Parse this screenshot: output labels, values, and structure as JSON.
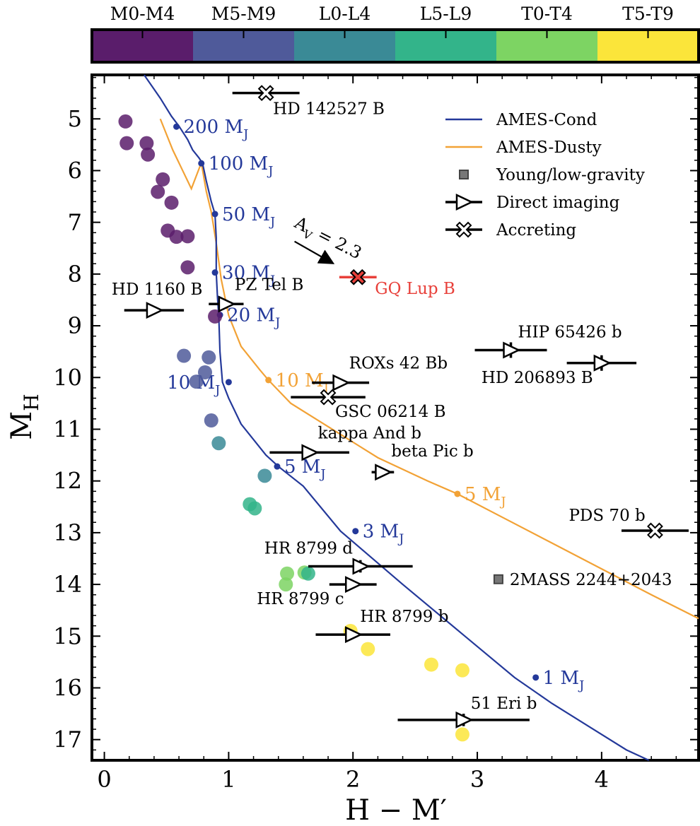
{
  "chart_data": {
    "type": "scatter",
    "xlabel": "H − M′",
    "ylabel": "M_H",
    "xlim": [
      -0.1,
      4.78
    ],
    "ylim": [
      17.4,
      4.15
    ],
    "y_inverted": true,
    "grid": false,
    "legend_placement": "top-right",
    "x_ticks": [
      "0",
      "1",
      "2",
      "3",
      "4"
    ],
    "y_ticks": [
      "5",
      "6",
      "7",
      "8",
      "9",
      "10",
      "11",
      "12",
      "13",
      "14",
      "15",
      "16",
      "17"
    ],
    "colorbar": {
      "labels": [
        "M0-M4",
        "M5-M9",
        "L0-L4",
        "L5-L9",
        "T0-T4",
        "T5-T9"
      ],
      "colors": [
        "#5a1d6b",
        "#4f5a9a",
        "#3a8a96",
        "#33b48a",
        "#7dd463",
        "#fbe53a"
      ]
    },
    "legend": [
      {
        "label": "AMES-Cond",
        "marker": "line",
        "color": "#24399a"
      },
      {
        "label": "AMES-Dusty",
        "marker": "line",
        "color": "#f2a236"
      },
      {
        "label": "Young/low-gravity",
        "marker": "square",
        "color": "#777777"
      },
      {
        "label": "Direct imaging",
        "marker": "triangle-right",
        "color": "#000000"
      },
      {
        "label": "Accreting",
        "marker": "x",
        "color": "#000000"
      }
    ],
    "series": [
      {
        "name": "AMES-Cond",
        "color": "#24399a",
        "x": [
          0.32,
          0.45,
          0.54,
          0.6,
          0.67,
          0.71,
          0.76,
          0.79,
          0.82,
          0.86,
          0.89,
          0.9,
          0.9,
          0.91,
          0.92,
          0.93,
          0.95,
          1.0,
          1.1,
          1.3,
          1.4,
          1.6,
          1.9,
          2.4,
          2.9,
          3.3,
          3.6,
          3.9,
          4.2,
          4.38
        ],
        "y": [
          4.15,
          4.6,
          4.95,
          5.14,
          5.4,
          5.6,
          5.75,
          5.86,
          6.2,
          6.6,
          6.84,
          7.3,
          7.97,
          8.45,
          8.79,
          9.5,
          10.09,
          10.4,
          10.9,
          11.5,
          11.72,
          12.1,
          12.97,
          14.0,
          15.0,
          15.8,
          16.3,
          16.75,
          17.2,
          17.4
        ],
        "mass_labels": [
          {
            "x": 0.58,
            "y": 5.15,
            "label": "200 M",
            "sub": "J"
          },
          {
            "x": 0.78,
            "y": 5.86,
            "label": "100 M",
            "sub": "J"
          },
          {
            "x": 0.89,
            "y": 6.84,
            "label": "50 M",
            "sub": "J"
          },
          {
            "x": 0.89,
            "y": 7.97,
            "label": "30 M",
            "sub": "J"
          },
          {
            "x": 0.93,
            "y": 8.79,
            "label": "20 M",
            "sub": "J"
          },
          {
            "x": 1.0,
            "y": 10.09,
            "label": "10 M",
            "sub": "J"
          },
          {
            "x": 1.39,
            "y": 11.72,
            "label": "5 M",
            "sub": "J"
          },
          {
            "x": 2.02,
            "y": 12.97,
            "label": "3 M",
            "sub": "J"
          },
          {
            "x": 3.47,
            "y": 15.8,
            "label": "1 M",
            "sub": "J"
          }
        ]
      },
      {
        "name": "AMES-Dusty",
        "color": "#f2a236",
        "x": [
          0.45,
          0.55,
          0.63,
          0.7,
          0.74,
          0.78,
          0.82,
          0.86,
          0.9,
          0.94,
          1.0,
          1.1,
          1.25,
          1.32,
          1.5,
          1.8,
          2.2,
          2.6,
          2.84,
          3.2,
          3.6,
          4.0,
          4.4,
          4.78
        ],
        "y": [
          5.0,
          5.6,
          6.0,
          6.35,
          6.1,
          5.85,
          6.4,
          6.8,
          7.4,
          8.1,
          8.8,
          9.4,
          9.85,
          10.05,
          10.5,
          10.95,
          11.55,
          12.0,
          12.25,
          12.7,
          13.2,
          13.7,
          14.2,
          14.66
        ],
        "mass_labels": [
          {
            "x": 1.32,
            "y": 10.05,
            "label": "10 M",
            "sub": "J"
          },
          {
            "x": 2.84,
            "y": 12.25,
            "label": "5 M",
            "sub": "J"
          }
        ]
      },
      {
        "name": "Field dwarfs",
        "points": [
          {
            "x": 0.17,
            "y": 5.05,
            "c": 0
          },
          {
            "x": 0.18,
            "y": 5.47,
            "c": 0
          },
          {
            "x": 0.34,
            "y": 5.47,
            "c": 0
          },
          {
            "x": 0.35,
            "y": 5.69,
            "c": 0
          },
          {
            "x": 0.47,
            "y": 6.17,
            "c": 0
          },
          {
            "x": 0.43,
            "y": 6.41,
            "c": 0
          },
          {
            "x": 0.54,
            "y": 6.62,
            "c": 0
          },
          {
            "x": 0.51,
            "y": 7.16,
            "c": 0
          },
          {
            "x": 0.58,
            "y": 7.28,
            "c": 0
          },
          {
            "x": 0.67,
            "y": 7.27,
            "c": 0
          },
          {
            "x": 0.67,
            "y": 7.87,
            "c": 0
          },
          {
            "x": 0.89,
            "y": 8.82,
            "c": 0
          },
          {
            "x": 0.64,
            "y": 9.58,
            "c": 1
          },
          {
            "x": 0.84,
            "y": 9.61,
            "c": 1
          },
          {
            "x": 0.81,
            "y": 9.9,
            "c": 1
          },
          {
            "x": 0.74,
            "y": 10.08,
            "c": 1
          },
          {
            "x": 0.86,
            "y": 10.83,
            "c": 1
          },
          {
            "x": 0.92,
            "y": 11.27,
            "c": 2
          },
          {
            "x": 1.29,
            "y": 11.9,
            "c": 2
          },
          {
            "x": 1.17,
            "y": 12.45,
            "c": 3
          },
          {
            "x": 1.21,
            "y": 12.53,
            "c": 3
          },
          {
            "x": 1.47,
            "y": 13.79,
            "c": 4
          },
          {
            "x": 1.61,
            "y": 13.77,
            "c": 4
          },
          {
            "x": 1.46,
            "y": 14.0,
            "c": 4
          },
          {
            "x": 1.64,
            "y": 13.79,
            "c": 3
          },
          {
            "x": 1.98,
            "y": 14.9,
            "c": 5
          },
          {
            "x": 2.12,
            "y": 15.25,
            "c": 5
          },
          {
            "x": 2.63,
            "y": 15.55,
            "c": 5
          },
          {
            "x": 2.88,
            "y": 15.66,
            "c": 5
          },
          {
            "x": 2.88,
            "y": 16.9,
            "c": 5
          }
        ]
      },
      {
        "name": "Companions",
        "points": [
          {
            "label": "HD 142527 B",
            "x": 1.3,
            "y": 4.5,
            "xerr": 0.27,
            "yerr": 0,
            "marker": "x"
          },
          {
            "label": "HD 1160 B",
            "x": 0.4,
            "y": 8.7,
            "xerr": 0.24,
            "yerr": 0,
            "marker": "tri"
          },
          {
            "label": "PZ Tel B",
            "x": 0.98,
            "y": 8.58,
            "xerr": 0.14,
            "yerr": 0,
            "marker": "tri"
          },
          {
            "label": "GQ Lup B",
            "x": 2.04,
            "y": 8.06,
            "xerr": 0.15,
            "yerr": 0,
            "marker": "x",
            "color": "#e8403a"
          },
          {
            "label": "HIP 65426 b",
            "x": 3.27,
            "y": 9.47,
            "xerr": 0.29,
            "yerr": 0.15,
            "marker": "tri"
          },
          {
            "label": "HD 206893 B",
            "x": 4.0,
            "y": 9.72,
            "xerr": 0.28,
            "yerr": 0.15,
            "marker": "tri"
          },
          {
            "label": "ROXs 42 Bb",
            "x": 1.9,
            "y": 10.1,
            "xerr": 0.23,
            "yerr": 0,
            "marker": "tri"
          },
          {
            "label": "GSC 06214 B",
            "x": 1.8,
            "y": 10.38,
            "xerr": 0.3,
            "yerr": 0,
            "marker": "x"
          },
          {
            "label": "kappa And b",
            "x": 1.65,
            "y": 11.45,
            "xerr": 0.32,
            "yerr": 0,
            "marker": "tri"
          },
          {
            "label": "beta Pic b",
            "x": 2.24,
            "y": 11.83,
            "xerr": 0.09,
            "yerr": 0,
            "marker": "tri"
          },
          {
            "label": "PDS 70 b",
            "x": 4.43,
            "y": 12.96,
            "xerr": 0.27,
            "yerr": 0,
            "marker": "x"
          },
          {
            "label": "HR 8799 d",
            "x": 2.06,
            "y": 13.65,
            "xerr": 0.42,
            "yerr": 0.12,
            "marker": "tri"
          },
          {
            "label": "HR 8799 c",
            "x": 2.0,
            "y": 14.0,
            "xerr": 0.19,
            "yerr": 0,
            "marker": "tri"
          },
          {
            "label": "HR 8799 b",
            "x": 2.0,
            "y": 14.97,
            "xerr": 0.3,
            "yerr": 0,
            "marker": "tri"
          },
          {
            "label": "51 Eri b",
            "x": 2.89,
            "y": 16.62,
            "xerr": 0.53,
            "yerr": 0.12,
            "marker": "tri"
          },
          {
            "label": "2MASS 2244+2043",
            "x": 3.17,
            "y": 13.9,
            "xerr": 0,
            "yerr": 0,
            "marker": "square"
          }
        ]
      }
    ],
    "annotations": [
      {
        "text": "A",
        "sub": "V",
        "rest": " = 2.3",
        "arrow_from": [
          1.53,
          7.37
        ],
        "arrow_to": [
          1.83,
          7.78
        ]
      }
    ]
  }
}
